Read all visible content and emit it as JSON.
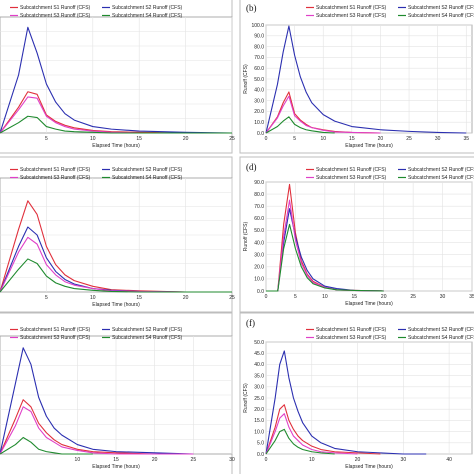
{
  "chart_data": [
    {
      "panel": "",
      "type": "line",
      "xlabel": "Elapsed Time (hours)",
      "ylabel": "",
      "ylim": [
        0,
        90
      ],
      "xlim": [
        0,
        25
      ],
      "grid": true,
      "legend_placement": "top",
      "x_ticks": [
        "5",
        "10",
        "15",
        "20",
        "25"
      ],
      "y_ticks": [],
      "series": [
        {
          "name": "Subcatchment S1 Runoff (CFS)",
          "color": "#e0303c",
          "x": [
            0,
            2,
            3,
            4,
            5,
            6,
            7,
            8,
            10,
            12,
            15,
            20,
            25
          ],
          "y": [
            0,
            20,
            32,
            30,
            14,
            9,
            6,
            4,
            2,
            1,
            0.5,
            0,
            0
          ]
        },
        {
          "name": "Subcatchment S2 Runoff (CFS)",
          "color": "#2b2fb0",
          "x": [
            0,
            2,
            3,
            4,
            5,
            6,
            7,
            8,
            10,
            12,
            15,
            20,
            25
          ],
          "y": [
            0,
            45,
            82,
            62,
            38,
            24,
            15,
            10,
            5,
            3,
            1.5,
            0.5,
            0
          ]
        },
        {
          "name": "Subcatchment S3 Runoff (CFS)",
          "color": "#e040c8",
          "x": [
            0,
            2,
            3,
            4,
            5,
            6,
            7,
            8,
            10,
            12,
            15,
            20,
            25
          ],
          "y": [
            0,
            18,
            28,
            27,
            13,
            8,
            5,
            3,
            1.5,
            0.5,
            0,
            0,
            0
          ]
        },
        {
          "name": "Subcatchment S4 Runoff (CFS)",
          "color": "#1f8a2e",
          "x": [
            0,
            2,
            3,
            4,
            5,
            6,
            7,
            8,
            10,
            12,
            15,
            20,
            25
          ],
          "y": [
            0,
            8,
            13,
            12,
            5,
            3,
            1.5,
            1,
            0.5,
            0,
            0,
            0,
            0
          ]
        }
      ]
    },
    {
      "panel": "(b)",
      "type": "line",
      "xlabel": "Elapsed Time (hours)",
      "ylabel": "Runoff (CFS)",
      "ylim": [
        0,
        100
      ],
      "xlim": [
        0,
        36
      ],
      "grid": true,
      "legend_placement": "top",
      "x_ticks": [
        "0",
        "5",
        "10",
        "15",
        "20",
        "25",
        "30",
        "35"
      ],
      "y_ticks": [
        "0.0",
        "10.0",
        "20.0",
        "30.0",
        "40.0",
        "50.0",
        "60.0",
        "70.0",
        "80.0",
        "90.0",
        "100.0"
      ],
      "series": [
        {
          "name": "Subcatchment S1 Runoff (CFS)",
          "color": "#e0303c",
          "x": [
            0,
            2,
            3,
            4,
            5,
            6,
            7,
            8,
            10,
            12,
            15,
            20
          ],
          "y": [
            0,
            15,
            28,
            38,
            18,
            12,
            8,
            5,
            3,
            1.5,
            0.5,
            0
          ]
        },
        {
          "name": "Subcatchment S2 Runoff (CFS)",
          "color": "#2b2fb0",
          "x": [
            0,
            2,
            3,
            4,
            5,
            6,
            7,
            8,
            10,
            12,
            15,
            20,
            25,
            30,
            35
          ],
          "y": [
            0,
            45,
            75,
            99,
            72,
            52,
            38,
            28,
            17,
            11,
            6,
            3,
            1.5,
            0.5,
            0
          ]
        },
        {
          "name": "Subcatchment S3 Runoff (CFS)",
          "color": "#e040c8",
          "x": [
            0,
            2,
            3,
            4,
            5,
            6,
            7,
            8,
            10,
            12,
            15,
            20
          ],
          "y": [
            0,
            14,
            25,
            34,
            16,
            11,
            7,
            5,
            2.5,
            1,
            0.5,
            0
          ]
        },
        {
          "name": "Subcatchment S4 Runoff (CFS)",
          "color": "#1f8a2e",
          "x": [
            0,
            2,
            3,
            4,
            5,
            6,
            7,
            8,
            10,
            12
          ],
          "y": [
            0,
            6,
            11,
            15,
            8,
            5,
            3,
            2,
            0.5,
            0
          ]
        }
      ]
    },
    {
      "panel": "",
      "type": "line",
      "xlabel": "Elapsed Time (hours)",
      "ylabel": "",
      "ylim": [
        0,
        100
      ],
      "xlim": [
        0,
        25
      ],
      "grid": true,
      "legend_placement": "top",
      "x_ticks": [
        "5",
        "10",
        "15",
        "20",
        "25"
      ],
      "y_ticks": [],
      "series": [
        {
          "name": "Subcatchment S1 Runoff (CFS)",
          "color": "#e0303c",
          "x": [
            0,
            2,
            3,
            4,
            5,
            6,
            7,
            8,
            10,
            12,
            15,
            20,
            25
          ],
          "y": [
            0,
            55,
            80,
            68,
            40,
            24,
            15,
            10,
            5,
            2,
            1,
            0,
            0
          ]
        },
        {
          "name": "Subcatchment S2 Runoff (CFS)",
          "color": "#2b2fb0",
          "x": [
            0,
            2,
            3,
            4,
            5,
            6,
            7,
            8,
            10,
            12,
            15,
            20,
            25
          ],
          "y": [
            0,
            40,
            57,
            50,
            30,
            18,
            11,
            7,
            3,
            1.5,
            0.5,
            0,
            0
          ]
        },
        {
          "name": "Subcatchment S3 Runoff (CFS)",
          "color": "#e040c8",
          "x": [
            0,
            2,
            3,
            4,
            5,
            6,
            7,
            8,
            10,
            12,
            15,
            20,
            25
          ],
          "y": [
            0,
            35,
            48,
            42,
            24,
            15,
            9,
            6,
            3,
            1,
            0.5,
            0,
            0
          ]
        },
        {
          "name": "Subcatchment S4 Runoff (CFS)",
          "color": "#1f8a2e",
          "x": [
            0,
            2,
            3,
            4,
            5,
            6,
            7,
            8,
            10,
            12,
            15,
            20,
            25
          ],
          "y": [
            0,
            20,
            29,
            25,
            14,
            8,
            5,
            3,
            1.5,
            0.5,
            0,
            0,
            0
          ]
        }
      ]
    },
    {
      "panel": "(d)",
      "type": "line",
      "xlabel": "Elapsed Time (hours)",
      "ylabel": "Runoff (CFS)",
      "ylim": [
        0,
        90
      ],
      "xlim": [
        0,
        35
      ],
      "grid": true,
      "legend_placement": "top",
      "x_ticks": [
        "0",
        "5",
        "10",
        "15",
        "20",
        "25",
        "30",
        "35"
      ],
      "y_ticks": [
        "0.0",
        "10.0",
        "20.0",
        "30.0",
        "40.0",
        "50.0",
        "60.0",
        "70.0",
        "80.0",
        "90.0"
      ],
      "series": [
        {
          "name": "Subcatchment S1 Runoff (CFS)",
          "color": "#e0303c",
          "x": [
            0,
            2,
            3,
            4,
            5,
            6,
            7,
            8,
            10,
            12,
            15,
            20
          ],
          "y": [
            0,
            0,
            55,
            88,
            48,
            25,
            14,
            8,
            3,
            1,
            0.5,
            0
          ]
        },
        {
          "name": "Subcatchment S2 Runoff (CFS)",
          "color": "#2b2fb0",
          "x": [
            0,
            2,
            3,
            4,
            5,
            6,
            7,
            8,
            10,
            12,
            15,
            20
          ],
          "y": [
            0,
            0,
            40,
            68,
            45,
            28,
            17,
            10,
            4,
            2,
            0.5,
            0
          ]
        },
        {
          "name": "Subcatchment S3 Runoff (CFS)",
          "color": "#e040c8",
          "x": [
            0,
            2,
            3,
            4,
            5,
            6,
            7,
            8,
            10,
            12,
            15,
            20
          ],
          "y": [
            0,
            0,
            45,
            75,
            42,
            23,
            13,
            7,
            3,
            1,
            0.5,
            0
          ]
        },
        {
          "name": "Subcatchment S4 Runoff (CFS)",
          "color": "#1f8a2e",
          "x": [
            0,
            2,
            3,
            4,
            5,
            6,
            7,
            8,
            10,
            12,
            15,
            20
          ],
          "y": [
            0,
            0,
            35,
            55,
            35,
            20,
            11,
            6,
            2.5,
            1,
            0.5,
            0
          ]
        }
      ]
    },
    {
      "panel": "",
      "type": "line",
      "xlabel": "Elapsed Time (hours)",
      "ylabel": "",
      "ylim": [
        0,
        50
      ],
      "xlim": [
        0,
        30
      ],
      "grid": true,
      "legend_placement": "top",
      "x_ticks": [
        "10",
        "15",
        "20",
        "25",
        "30"
      ],
      "y_ticks": [],
      "series": [
        {
          "name": "Subcatchment S1 Runoff (CFS)",
          "color": "#e0303c",
          "x": [
            0,
            2,
            3,
            4,
            5,
            6,
            7,
            8,
            10,
            12,
            15,
            20,
            25
          ],
          "y": [
            0,
            15,
            23,
            20,
            13,
            9,
            6,
            4,
            2,
            1,
            0.5,
            0,
            0
          ]
        },
        {
          "name": "Subcatchment S2 Runoff (CFS)",
          "color": "#2b2fb0",
          "x": [
            0,
            2,
            3,
            4,
            5,
            6,
            7,
            8,
            10,
            12,
            15,
            20,
            25
          ],
          "y": [
            0,
            30,
            45,
            38,
            24,
            16,
            11,
            8,
            4,
            2,
            1,
            0.5,
            0
          ]
        },
        {
          "name": "Subcatchment S3 Runoff (CFS)",
          "color": "#e040c8",
          "x": [
            0,
            2,
            3,
            4,
            5,
            6,
            7,
            8,
            10,
            12,
            15,
            20,
            25
          ],
          "y": [
            0,
            12,
            20,
            18,
            11,
            7,
            5,
            3,
            1.5,
            0.5,
            0,
            0,
            0
          ]
        },
        {
          "name": "Subcatchment S4 Runoff (CFS)",
          "color": "#1f8a2e",
          "x": [
            0,
            2,
            3,
            4,
            5,
            6,
            7,
            8,
            10,
            12
          ],
          "y": [
            0,
            4,
            7,
            5,
            2,
            1,
            0.5,
            0,
            0,
            0
          ]
        }
      ]
    },
    {
      "panel": "(f)",
      "type": "line",
      "xlabel": "Elapsed Time (hours)",
      "ylabel": "Runoff (CFS)",
      "ylim": [
        0,
        50
      ],
      "xlim": [
        0,
        45
      ],
      "grid": true,
      "legend_placement": "top",
      "x_ticks": [
        "0",
        "10",
        "20",
        "30",
        "40"
      ],
      "y_ticks": [
        "0.0",
        "5.0",
        "10.0",
        "15.0",
        "20.0",
        "25.0",
        "30.0",
        "35.0",
        "40.0",
        "45.0",
        "50.0"
      ],
      "series": [
        {
          "name": "Subcatchment S1 Runoff (CFS)",
          "color": "#e0303c",
          "x": [
            0,
            2,
            3,
            4,
            5,
            6,
            7,
            8,
            10,
            12,
            15,
            20,
            25
          ],
          "y": [
            0,
            12,
            20,
            22,
            15,
            11,
            8,
            6,
            3.5,
            2,
            1,
            0.5,
            0
          ]
        },
        {
          "name": "Subcatchment S2 Runoff (CFS)",
          "color": "#2b2fb0",
          "x": [
            0,
            2,
            3,
            4,
            5,
            6,
            7,
            8,
            10,
            12,
            15,
            20,
            25,
            30,
            35
          ],
          "y": [
            0,
            25,
            40,
            46,
            34,
            25,
            19,
            14,
            8,
            5,
            2.5,
            1,
            0.5,
            0,
            0
          ]
        },
        {
          "name": "Subcatchment S3 Runoff (CFS)",
          "color": "#e040c8",
          "x": [
            0,
            2,
            3,
            4,
            5,
            6,
            7,
            8,
            10,
            12,
            15,
            20
          ],
          "y": [
            0,
            10,
            16,
            18,
            12,
            8,
            6,
            4,
            2,
            1,
            0.5,
            0
          ]
        },
        {
          "name": "Subcatchment S4 Runoff (CFS)",
          "color": "#1f8a2e",
          "x": [
            0,
            2,
            3,
            4,
            5,
            6,
            7,
            8,
            10,
            12,
            15
          ],
          "y": [
            0,
            6,
            10,
            11,
            7,
            4.5,
            3,
            2,
            1,
            0.5,
            0
          ]
        }
      ]
    }
  ]
}
